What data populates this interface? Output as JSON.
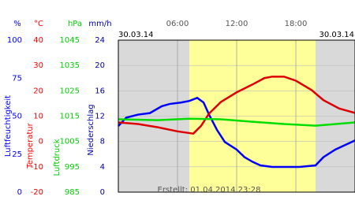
{
  "chart_data": {
    "type": "line",
    "date_left": "30.03.14",
    "date_right": "30.03.14",
    "note": "Erstellt: 01.04.2014 23:28",
    "xlim": [
      0,
      24
    ],
    "xticks": [
      {
        "value": 6,
        "label": "06:00"
      },
      {
        "value": 12,
        "label": "12:00"
      },
      {
        "value": 18,
        "label": "18:00"
      }
    ],
    "daylight": [
      7.2,
      20
    ],
    "axes": [
      {
        "unit": "%",
        "label": "Luftfeuchtigkeit",
        "color": "#0000ff",
        "lim": [
          0,
          100
        ],
        "ticks": [
          0,
          25,
          50,
          75,
          100
        ]
      },
      {
        "unit": "°C",
        "label": "Temperatur",
        "color": "#ff0000",
        "lim": [
          -20,
          40
        ],
        "ticks": [
          -20,
          -10,
          0,
          10,
          20,
          30,
          40
        ]
      },
      {
        "unit": "hPa",
        "label": "Luftdruck",
        "color": "#00cc00",
        "lim": [
          985,
          1045
        ],
        "ticks": [
          985,
          995,
          1005,
          1015,
          1025,
          1035,
          1045
        ]
      },
      {
        "unit": "mm/h",
        "label": "Niederschlag",
        "color": "#0000aa",
        "lim": [
          0,
          24
        ],
        "ticks": [
          0,
          4,
          8,
          12,
          16,
          20,
          24
        ]
      }
    ],
    "series": [
      {
        "axis": 0,
        "color": "#0000ff",
        "x": [
          0,
          0.8,
          2,
          3.2,
          4.4,
          5.2,
          6.4,
          7.2,
          8,
          8.64,
          9.2,
          10,
          10.8,
          12,
          12.8,
          13.6,
          14.4,
          15.6,
          16.8,
          18.4,
          20,
          20.8,
          22,
          23.2,
          24
        ],
        "values": [
          43.5,
          49,
          51,
          52,
          56.5,
          58,
          59,
          60,
          62,
          59,
          51,
          41,
          33,
          28,
          23,
          20,
          17.6,
          16.6,
          16.6,
          16.6,
          17.6,
          23,
          28,
          31.6,
          34
        ]
      },
      {
        "axis": 1,
        "color": "#dd0000",
        "x": [
          0,
          2,
          4,
          6,
          7.6,
          8.4,
          9.2,
          10.4,
          12,
          13.6,
          14.8,
          15.6,
          16.8,
          18,
          19.6,
          20.8,
          22.4,
          24
        ],
        "values": [
          7.5,
          6.9,
          5.6,
          4,
          3.1,
          6.2,
          11,
          15.6,
          19.4,
          22.5,
          25,
          25.6,
          25.6,
          24,
          20.3,
          16.3,
          13,
          11.25
        ]
      },
      {
        "axis": 2,
        "color": "#00dd00",
        "x": [
          0,
          4,
          7.2,
          10.4,
          13.6,
          16.8,
          20,
          24
        ],
        "values": [
          1013.75,
          1013.4,
          1014,
          1013.75,
          1012.8,
          1011.9,
          1011.25,
          1012.5
        ]
      }
    ]
  }
}
